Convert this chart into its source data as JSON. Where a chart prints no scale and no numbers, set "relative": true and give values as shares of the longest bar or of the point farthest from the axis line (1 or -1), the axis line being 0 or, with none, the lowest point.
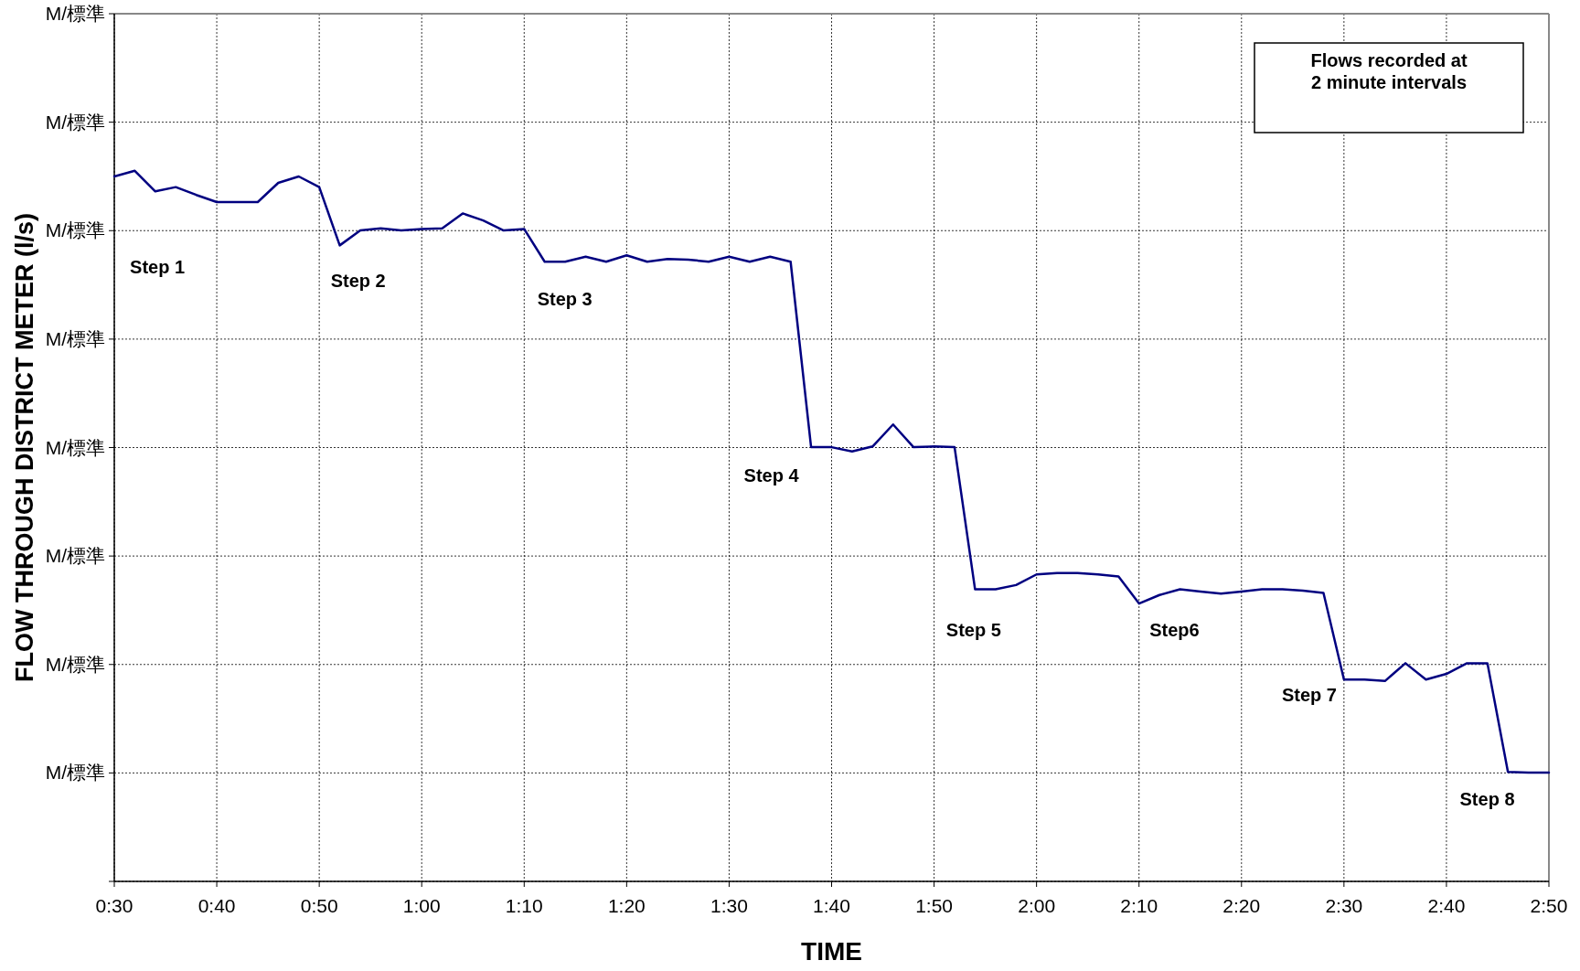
{
  "chart_data": {
    "type": "line",
    "relative": true,
    "xlabel": "TIME",
    "ylabel": "FLOW THROUGH DISTRICT METER (l/s)",
    "x": [
      30,
      32,
      34,
      36,
      38,
      40,
      42,
      44,
      46,
      48,
      50,
      52,
      54,
      56,
      58,
      60,
      62,
      64,
      66,
      68,
      70,
      72,
      74,
      76,
      78,
      80,
      82,
      84,
      86,
      88,
      90,
      92,
      94,
      96,
      98,
      100,
      102,
      104,
      106,
      108,
      110,
      112,
      114,
      116,
      118,
      120,
      122,
      124,
      126,
      128,
      130,
      132,
      134,
      136,
      138,
      140,
      142,
      144,
      146,
      148,
      150,
      152,
      154,
      156,
      158,
      160,
      162,
      164,
      166,
      168,
      170
    ],
    "series": [
      {
        "color": "#000080",
        "values": [
          0.992,
          1,
          0.971,
          0.977,
          0.966,
          0.956,
          0.956,
          0.956,
          0.983,
          0.992,
          0.977,
          0.895,
          0.916,
          0.919,
          0.916,
          0.918,
          0.919,
          0.94,
          0.93,
          0.916,
          0.918,
          0.872,
          0.872,
          0.879,
          0.872,
          0.881,
          0.872,
          0.876,
          0.875,
          0.872,
          0.879,
          0.872,
          0.879,
          0.872,
          0.611,
          0.611,
          0.605,
          0.612,
          0.643,
          0.611,
          0.612,
          0.611,
          0.411,
          0.411,
          0.417,
          0.432,
          0.434,
          0.434,
          0.432,
          0.429,
          0.391,
          0.403,
          0.411,
          0.408,
          0.405,
          0.408,
          0.411,
          0.411,
          0.409,
          0.406,
          0.284,
          0.284,
          0.282,
          0.307,
          0.284,
          0.292,
          0.307,
          0.307,
          0.154,
          0.153,
          0.153
        ]
      }
    ],
    "xlim": [
      30,
      170
    ],
    "xticks": [
      {
        "value": 30,
        "label": "0:30"
      },
      {
        "value": 40,
        "label": "0:40"
      },
      {
        "value": 50,
        "label": "0:50"
      },
      {
        "value": 60,
        "label": "1:00"
      },
      {
        "value": 70,
        "label": "1:10"
      },
      {
        "value": 80,
        "label": "1:20"
      },
      {
        "value": 90,
        "label": "1:30"
      },
      {
        "value": 100,
        "label": "1:40"
      },
      {
        "value": 110,
        "label": "1:50"
      },
      {
        "value": 120,
        "label": "2:00"
      },
      {
        "value": 130,
        "label": "2:10"
      },
      {
        "value": 140,
        "label": "2:20"
      },
      {
        "value": 150,
        "label": "2:30"
      },
      {
        "value": 160,
        "label": "2:40"
      },
      {
        "value": 170,
        "label": "2:50"
      }
    ],
    "grid": true,
    "line_style": "solid",
    "marker": "none",
    "annotations": [
      "Step 1",
      "Step 2",
      "Step 3",
      "Step 4",
      "Step 5",
      "Step6",
      "Step 7",
      "Step 8",
      "Flows recorded at\n2 minute intervals",
      "M/標準",
      "M/標準",
      "M/標準",
      "M/標準",
      "M/標準",
      "M/標準",
      "M/標準",
      "M/標準"
    ]
  }
}
